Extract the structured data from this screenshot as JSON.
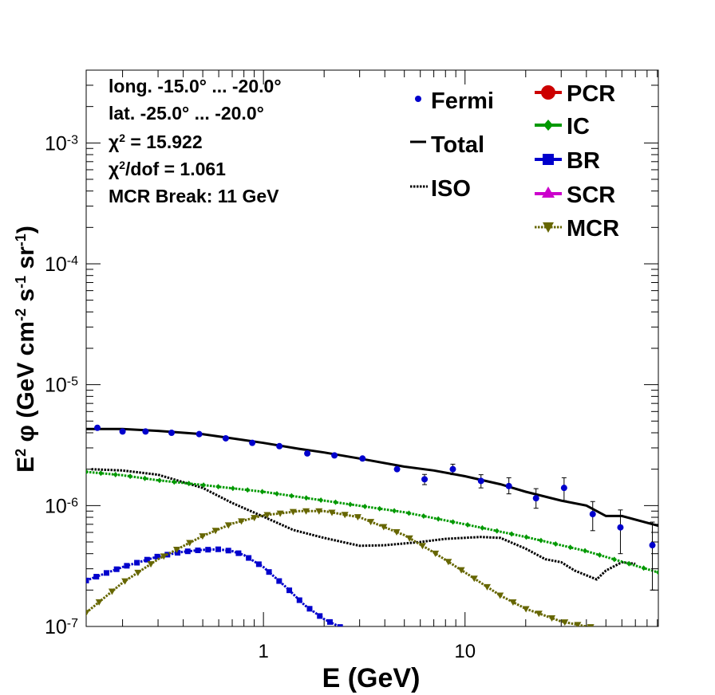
{
  "chart_data": {
    "type": "line",
    "title": "",
    "xlabel": "E (GeV)",
    "ylabel": {
      "pre": "E",
      "pre_sup": "2",
      "mid": " φ (GeV cm",
      "cm_sup": "-2",
      "s": " s",
      "s_sup": "-1",
      "sr": " sr",
      "sr_sup": "-1",
      "close": ")"
    },
    "xscale": "log",
    "yscale": "log",
    "xlim": [
      0.132,
      91.0
    ],
    "ylim": [
      1e-07,
      0.004
    ],
    "x_ticks": [
      {
        "value": 1,
        "label": "1"
      },
      {
        "value": 10,
        "label": "10"
      }
    ],
    "y_ticks": [
      {
        "value": 1e-07,
        "base": "10",
        "exp": "-7"
      },
      {
        "value": 1e-06,
        "base": "10",
        "exp": "-6"
      },
      {
        "value": 1e-05,
        "base": "10",
        "exp": "-5"
      },
      {
        "value": 0.0001,
        "base": "10",
        "exp": "-4"
      },
      {
        "value": 0.001,
        "base": "10",
        "exp": "-3"
      }
    ],
    "info": [
      {
        "text": "long. -15.0° ... -20.0°"
      },
      {
        "text": "lat. -25.0° ... -20.0°"
      },
      {
        "pre": "χ",
        "sup": "2",
        "post": " = 15.922"
      },
      {
        "pre": "χ",
        "sup": "2",
        "post": "/dof = 1.061"
      },
      {
        "text": "MCR Break: 11 GeV"
      }
    ],
    "legend_left": [
      {
        "key": "fermi",
        "label": "Fermi",
        "color": "#0000cc"
      },
      {
        "key": "total",
        "label": "Total",
        "color": "#000000"
      },
      {
        "key": "iso",
        "label": "ISO",
        "color": "#000000"
      }
    ],
    "legend_right": [
      {
        "key": "pcr",
        "label": "PCR",
        "color": "#cc0000"
      },
      {
        "key": "ic",
        "label": "IC",
        "color": "#009900"
      },
      {
        "key": "br",
        "label": "BR",
        "color": "#0000cc"
      },
      {
        "key": "scr",
        "label": "SCR",
        "color": "#cc00cc"
      },
      {
        "key": "mcr",
        "label": "MCR",
        "color": "#666600"
      }
    ],
    "fermi": {
      "name": "Fermi",
      "color": "#0000cc",
      "x": [
        0.15,
        0.2,
        0.26,
        0.35,
        0.48,
        0.65,
        0.88,
        1.2,
        1.65,
        2.25,
        3.1,
        4.6,
        6.3,
        8.7,
        12.0,
        16.5,
        22.5,
        31.0,
        43.0,
        59.0,
        85.0
      ],
      "y": [
        4.4e-06,
        4.1e-06,
        4.1e-06,
        4e-06,
        3.9e-06,
        3.6e-06,
        3.3e-06,
        3.1e-06,
        2.7e-06,
        2.6e-06,
        2.45e-06,
        2e-06,
        1.65e-06,
        2e-06,
        1.6e-06,
        1.45e-06,
        1.15e-06,
        1.4e-06,
        8.5e-07,
        6.6e-07,
        4.7e-07
      ],
      "err_lo": [
        0,
        0,
        0,
        0,
        0,
        0,
        0,
        0,
        0,
        0,
        0,
        0,
        1.6e-07,
        2e-07,
        2e-07,
        2e-07,
        2e-07,
        3e-07,
        2.3e-07,
        2.6e-07,
        2.7e-07
      ],
      "err_hi": [
        0,
        0,
        0,
        0,
        0,
        0,
        0,
        0,
        0,
        0,
        0,
        0,
        1.6e-07,
        2e-07,
        2e-07,
        2.5e-07,
        2.3e-07,
        3e-07,
        2.3e-07,
        2.6e-07,
        2.6e-07
      ]
    },
    "series": [
      {
        "name": "Total",
        "color": "#000000",
        "style": "solid",
        "x": [
          0.132,
          0.2,
          0.3,
          0.5,
          0.7,
          1.0,
          1.5,
          2.0,
          3.0,
          5.0,
          7.0,
          10.0,
          15.0,
          20.0,
          30.0,
          40.0,
          50.0,
          60.0,
          91.0
        ],
        "y": [
          4.3e-06,
          4.3e-06,
          4.15e-06,
          3.9e-06,
          3.6e-06,
          3.3e-06,
          2.95e-06,
          2.75e-06,
          2.45e-06,
          2.1e-06,
          1.95e-06,
          1.75e-06,
          1.5e-06,
          1.3e-06,
          1.1e-06,
          1e-06,
          8.2e-07,
          8.2e-07,
          6.8e-07
        ]
      },
      {
        "name": "ISO",
        "color": "#000000",
        "style": "dotted",
        "x": [
          0.14,
          0.2,
          0.3,
          0.5,
          0.7,
          1.0,
          1.4,
          2.0,
          3.0,
          4.0,
          6.0,
          8.0,
          12.0,
          15.0,
          20.0,
          25.0,
          30.0,
          35.0,
          40.0,
          45.0,
          50.0,
          60.0,
          70.0
        ],
        "y": [
          2e-06,
          1.95e-06,
          1.8e-06,
          1.4e-06,
          1.05e-06,
          8.1e-07,
          6.3e-07,
          5.4e-07,
          4.65e-07,
          4.7e-07,
          5e-07,
          5.3e-07,
          5.5e-07,
          5.4e-07,
          4.4e-07,
          3.6e-07,
          3.4e-07,
          2.9e-07,
          2.65e-07,
          2.45e-07,
          2.9e-07,
          3.4e-07,
          3.3e-07
        ]
      },
      {
        "name": "IC",
        "color": "#009900",
        "style": "marker",
        "marker": "diamond",
        "x": [
          0.132,
          0.2,
          0.3,
          0.5,
          1.0,
          2.0,
          5.0,
          10.0,
          20.0,
          40.0,
          91.0
        ],
        "y": [
          1.9e-06,
          1.78e-06,
          1.62e-06,
          1.48e-06,
          1.3e-06,
          1.1e-06,
          8.8e-07,
          7e-07,
          5.5e-07,
          4.2e-07,
          2.8e-07
        ]
      },
      {
        "name": "BR",
        "color": "#0000cc",
        "style": "marker",
        "marker": "square",
        "x": [
          0.132,
          0.15,
          0.2,
          0.3,
          0.4,
          0.5,
          0.6,
          0.7,
          0.8,
          1.0,
          1.3,
          1.6,
          2.0,
          2.4
        ],
        "y": [
          2.4e-07,
          2.6e-07,
          3.1e-07,
          3.8e-07,
          4.15e-07,
          4.3e-07,
          4.35e-07,
          4.2e-07,
          3.9e-07,
          3.1e-07,
          2.1e-07,
          1.5e-07,
          1.15e-07,
          9.9e-08
        ]
      },
      {
        "name": "MCR",
        "color": "#666600",
        "style": "marker",
        "marker": "triangle-down",
        "x": [
          0.132,
          0.2,
          0.3,
          0.5,
          0.7,
          1.0,
          1.5,
          2.0,
          3.0,
          5.0,
          7.0,
          10.0,
          15.0,
          20.0,
          30.0,
          40.0,
          42.0
        ],
        "y": [
          1.3e-07,
          2.3e-07,
          3.6e-07,
          5.6e-07,
          7.1e-07,
          8.3e-07,
          9e-07,
          9e-07,
          8e-07,
          5.7e-07,
          4.1e-07,
          2.8e-07,
          1.8e-07,
          1.4e-07,
          1.1e-07,
          1e-07,
          9.9e-08
        ]
      }
    ]
  }
}
